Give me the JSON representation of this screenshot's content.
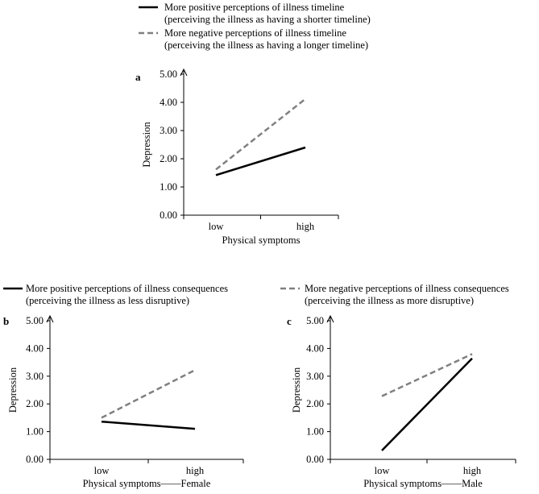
{
  "colors": {
    "positive": "#000000",
    "negative": "#808080",
    "axis": "#000000"
  },
  "legend_top": {
    "positive_line1": "More positive perceptions of illness timeline",
    "positive_line2": "(perceiving the illness as having a shorter timeline)",
    "negative_line1": "More negative perceptions of illness timeline",
    "negative_line2": "(perceiving the illness as having a longer timeline)"
  },
  "legend_bottom": {
    "positive_line1": "More positive perceptions of illness consequences",
    "positive_line2": "(perceiving the illness as less disruptive)",
    "negative_line1": "More negative perceptions of illness consequences",
    "negative_line2": "(perceiving the illness as more disruptive)"
  },
  "chart_data": [
    {
      "id": "a",
      "letter": "a",
      "type": "line",
      "xlabel": "Physical symptoms",
      "ylabel": "Depression",
      "categories": [
        "low",
        "high"
      ],
      "ylim": [
        0,
        5
      ],
      "yticks": [
        "0.00",
        "1.00",
        "2.00",
        "3.00",
        "4.00",
        "5.00"
      ],
      "series": [
        {
          "name": "More positive perceptions of illness timeline",
          "style": "solid",
          "values": [
            1.42,
            2.4
          ]
        },
        {
          "name": "More negative perceptions of illness timeline",
          "style": "dashed",
          "values": [
            1.62,
            4.12
          ]
        }
      ]
    },
    {
      "id": "b",
      "letter": "b",
      "type": "line",
      "xlabel": "Physical symptoms——Female",
      "ylabel": "Depression",
      "categories": [
        "low",
        "high"
      ],
      "ylim": [
        0,
        5
      ],
      "yticks": [
        "0.00",
        "1.00",
        "2.00",
        "3.00",
        "4.00",
        "5.00"
      ],
      "series": [
        {
          "name": "More positive perceptions of illness consequences",
          "style": "solid",
          "values": [
            1.36,
            1.1
          ]
        },
        {
          "name": "More negative perceptions of illness consequences",
          "style": "dashed",
          "values": [
            1.5,
            3.22
          ]
        }
      ]
    },
    {
      "id": "c",
      "letter": "c",
      "type": "line",
      "xlabel": "Physical symptoms——Male",
      "ylabel": "Depression",
      "categories": [
        "low",
        "high"
      ],
      "ylim": [
        0,
        5
      ],
      "yticks": [
        "0.00",
        "1.00",
        "2.00",
        "3.00",
        "4.00",
        "5.00"
      ],
      "series": [
        {
          "name": "More positive perceptions of illness consequences",
          "style": "solid",
          "values": [
            0.32,
            3.64
          ]
        },
        {
          "name": "More negative perceptions of illness consequences",
          "style": "dashed",
          "values": [
            2.28,
            3.8
          ]
        }
      ]
    }
  ]
}
